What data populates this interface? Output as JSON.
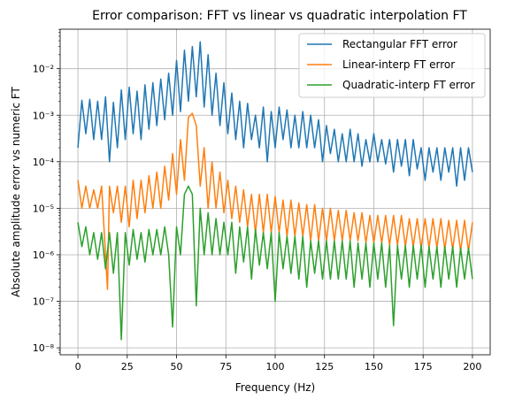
{
  "chart_data": {
    "type": "line",
    "title": "Error comparison: FFT vs linear vs quadratic interpolation FT",
    "xlabel": "Frequency (Hz)",
    "ylabel": "Absolute amplitude error vs numeric FT",
    "xlim": [
      -9,
      209
    ],
    "ylim_log10": [
      -8.15,
      -1.15
    ],
    "yscale": "log",
    "grid": true,
    "legend_position": "top-right",
    "x_ticks": [
      0,
      25,
      50,
      75,
      100,
      125,
      150,
      175,
      200
    ],
    "x_tick_labels": [
      "0",
      "25",
      "50",
      "75",
      "100",
      "125",
      "150",
      "175",
      "200"
    ],
    "y_ticks_log10": [
      -8,
      -7,
      -6,
      -5,
      -4,
      -3,
      -2
    ],
    "y_tick_labels": [
      "10⁻⁸",
      "10⁻⁷",
      "10⁻⁶",
      "10⁻⁵",
      "10⁻⁴",
      "10⁻³",
      "10⁻²"
    ],
    "series": [
      {
        "name": "Rectangular FFT error",
        "color": "#1f77b4",
        "x": [
          0,
          2,
          4,
          6,
          8,
          10,
          12,
          14,
          16,
          18,
          20,
          22,
          24,
          26,
          28,
          30,
          32,
          34,
          36,
          38,
          40,
          42,
          44,
          46,
          48,
          50,
          52,
          54,
          56,
          58,
          60,
          62,
          64,
          66,
          68,
          70,
          72,
          74,
          76,
          78,
          80,
          82,
          84,
          86,
          88,
          90,
          92,
          94,
          96,
          98,
          100,
          102,
          104,
          106,
          108,
          110,
          112,
          114,
          116,
          118,
          120,
          122,
          124,
          126,
          128,
          130,
          132,
          134,
          136,
          138,
          140,
          142,
          144,
          146,
          148,
          150,
          152,
          154,
          156,
          158,
          160,
          162,
          164,
          166,
          168,
          170,
          172,
          174,
          176,
          178,
          180,
          182,
          184,
          186,
          188,
          190,
          192,
          194,
          196,
          198,
          200
        ],
        "y": [
          0.0002,
          0.0021,
          0.0004,
          0.0022,
          0.0003,
          0.002,
          0.0003,
          0.0025,
          0.0001,
          0.0019,
          0.0002,
          0.0035,
          0.0003,
          0.004,
          0.0004,
          0.0033,
          0.0003,
          0.0045,
          0.0005,
          0.005,
          0.0006,
          0.006,
          0.0008,
          0.008,
          0.001,
          0.015,
          0.0012,
          0.025,
          0.002,
          0.03,
          0.0025,
          0.038,
          0.0015,
          0.02,
          0.001,
          0.008,
          0.0006,
          0.005,
          0.0004,
          0.003,
          0.0003,
          0.002,
          0.0002,
          0.0018,
          0.0003,
          0.001,
          0.0002,
          0.0015,
          0.0001,
          0.0012,
          0.0002,
          0.0015,
          0.0003,
          0.0013,
          0.0002,
          0.001,
          0.0002,
          0.0012,
          0.0002,
          0.001,
          0.0002,
          0.0008,
          0.0001,
          0.0006,
          0.00015,
          0.0005,
          0.0001,
          0.0004,
          0.0001,
          0.0005,
          0.0001,
          0.0004,
          8e-05,
          0.0003,
          0.0001,
          0.0004,
          0.0001,
          0.0003,
          9e-05,
          0.0003,
          6e-05,
          0.0003,
          8e-05,
          0.0003,
          5e-05,
          0.0003,
          7e-05,
          0.0002,
          4e-05,
          0.0002,
          6e-05,
          0.0002,
          4e-05,
          0.0002,
          6e-05,
          0.0002,
          3e-05,
          0.0002,
          4e-05,
          0.0002,
          6e-05
        ]
      },
      {
        "name": "Linear-interp FT error",
        "color": "#ff7f0e",
        "x": [
          0,
          2,
          4,
          6,
          8,
          10,
          12,
          14,
          15,
          16,
          18,
          20,
          22,
          24,
          26,
          28,
          30,
          32,
          34,
          36,
          38,
          40,
          42,
          44,
          46,
          48,
          50,
          52,
          54,
          56,
          58,
          60,
          62,
          64,
          66,
          68,
          70,
          72,
          74,
          76,
          78,
          80,
          82,
          84,
          86,
          88,
          90,
          92,
          94,
          96,
          98,
          100,
          102,
          104,
          106,
          108,
          110,
          112,
          114,
          116,
          118,
          120,
          122,
          124,
          126,
          128,
          130,
          132,
          134,
          136,
          138,
          140,
          142,
          144,
          146,
          148,
          150,
          152,
          154,
          156,
          158,
          160,
          162,
          164,
          166,
          168,
          170,
          172,
          174,
          176,
          178,
          180,
          182,
          184,
          186,
          188,
          190,
          192,
          194,
          196,
          198,
          200
        ],
        "y": [
          4e-05,
          1e-05,
          3e-05,
          1e-05,
          2.5e-05,
          1e-05,
          3e-05,
          1e-06,
          1.8e-07,
          3e-05,
          8e-06,
          3e-05,
          5e-06,
          3e-05,
          4e-06,
          4e-05,
          6e-06,
          4e-05,
          8e-06,
          5e-05,
          1e-05,
          6e-05,
          1e-05,
          8e-05,
          1.5e-05,
          0.00015,
          2e-05,
          0.0003,
          4e-05,
          0.0009,
          0.0011,
          0.0006,
          3e-05,
          0.0002,
          1e-05,
          0.0001,
          1e-05,
          6e-05,
          8e-06,
          4e-05,
          6e-06,
          3e-05,
          5e-06,
          2.5e-05,
          4e-06,
          2e-05,
          3e-06,
          2e-05,
          3e-06,
          2e-05,
          3e-06,
          1.8e-05,
          3e-06,
          1.5e-05,
          2.5e-06,
          1.5e-05,
          2.5e-06,
          1.3e-05,
          2.5e-06,
          1.2e-05,
          2e-06,
          1.2e-05,
          2e-06,
          1e-05,
          2e-06,
          1e-05,
          2e-06,
          9e-06,
          2e-06,
          9e-06,
          2e-06,
          8e-06,
          2e-06,
          8e-06,
          1.8e-06,
          7e-06,
          1.8e-06,
          7e-06,
          1.8e-06,
          7e-06,
          1.6e-06,
          7e-06,
          1.6e-06,
          7e-06,
          1.5e-06,
          6e-06,
          1.5e-06,
          6e-06,
          1.4e-06,
          6e-06,
          1.4e-06,
          6e-06,
          1.4e-06,
          6e-06,
          1.3e-06,
          5.5e-06,
          1.3e-06,
          5.5e-06,
          1.2e-06,
          5.5e-06,
          1.2e-06,
          5e-06
        ]
      },
      {
        "name": "Quadratic-interp FT error",
        "color": "#2ca02c",
        "x": [
          0,
          2,
          4,
          6,
          8,
          10,
          12,
          14,
          16,
          18,
          20,
          22,
          24,
          26,
          28,
          30,
          32,
          34,
          36,
          38,
          40,
          42,
          44,
          46,
          48,
          50,
          52,
          54,
          56,
          58,
          60,
          62,
          64,
          66,
          68,
          70,
          72,
          74,
          76,
          78,
          80,
          82,
          84,
          86,
          88,
          90,
          92,
          94,
          96,
          98,
          100,
          102,
          104,
          106,
          108,
          110,
          112,
          114,
          116,
          118,
          120,
          122,
          124,
          126,
          128,
          130,
          132,
          134,
          136,
          138,
          140,
          142,
          144,
          146,
          148,
          150,
          152,
          154,
          156,
          158,
          160,
          162,
          164,
          166,
          168,
          170,
          172,
          174,
          176,
          178,
          180,
          182,
          184,
          186,
          188,
          190,
          192,
          194,
          196,
          198,
          200
        ],
        "y": [
          5e-06,
          1.5e-06,
          4e-06,
          1e-06,
          3e-06,
          8e-07,
          3e-06,
          5e-07,
          3e-06,
          4e-07,
          3e-06,
          1.5e-08,
          3e-06,
          6e-07,
          3.5e-06,
          8e-07,
          3e-06,
          7e-07,
          3.5e-06,
          1e-06,
          3.5e-06,
          1e-06,
          4e-06,
          1e-06,
          2.8e-08,
          4e-06,
          1e-06,
          2e-05,
          3e-05,
          2e-05,
          8e-08,
          1e-05,
          1e-06,
          8e-06,
          1e-06,
          6e-06,
          1e-06,
          5e-06,
          1e-06,
          5e-06,
          4e-07,
          4e-06,
          7e-07,
          4e-06,
          3e-07,
          3.5e-06,
          6e-07,
          3e-06,
          5e-07,
          3e-06,
          1e-07,
          3e-06,
          5e-07,
          2.5e-06,
          4e-07,
          2.5e-06,
          3e-07,
          2.5e-06,
          2e-07,
          2e-06,
          4e-07,
          2e-06,
          3e-07,
          2e-06,
          3e-07,
          2e-06,
          3e-07,
          2e-06,
          3e-07,
          2e-06,
          2e-07,
          1.8e-06,
          3e-07,
          1.8e-06,
          2e-07,
          1.8e-06,
          3e-07,
          1.8e-06,
          2e-07,
          1.6e-06,
          3e-08,
          1.6e-06,
          3e-07,
          1.6e-06,
          2e-07,
          1.6e-06,
          3e-07,
          1.6e-06,
          2e-07,
          1.5e-06,
          3e-07,
          1.5e-06,
          2e-07,
          1.5e-06,
          3e-07,
          1.5e-06,
          2e-07,
          1.4e-06,
          3e-07,
          1.4e-06,
          3e-07
        ]
      }
    ]
  }
}
